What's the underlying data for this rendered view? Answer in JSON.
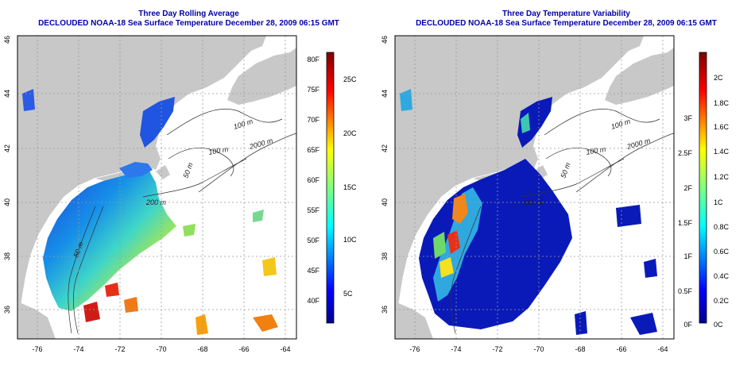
{
  "colors": {
    "land": "#c8c8c8",
    "title": "#0000a8",
    "contour": "#303030",
    "grid": "#9a9a9a"
  },
  "map_axes": {
    "lon_ticks": [
      "-76",
      "-74",
      "-72",
      "-70",
      "-68",
      "-66",
      "-64"
    ],
    "lat_ticks": [
      "36",
      "38",
      "40",
      "42",
      "44",
      "46"
    ],
    "depth_labels": [
      "100 m",
      "100 m",
      "2000 m",
      "200 m",
      "50 m",
      "50 m"
    ]
  },
  "left_panel": {
    "title_line1": "Three Day Rolling Average",
    "title_line2": "DECLOUDED NOAA-18 Sea Surface Temperature December 28, 2009 06:15 GMT",
    "colorbar": {
      "fahrenheit": [
        "80F",
        "75F",
        "70F",
        "65F",
        "60F",
        "55F",
        "50F",
        "45F",
        "40F"
      ],
      "celsius": [
        "25C",
        "20C",
        "15C",
        "10C",
        "5C"
      ]
    }
  },
  "right_panel": {
    "title_line1": "Three Day Temperature Variability",
    "title_line2": "DECLOUDED NOAA-18 Sea Surface Temperature December 28, 2009 06:15 GMT",
    "colorbar": {
      "fahrenheit": [
        "3F",
        "2.5F",
        "2F",
        "1.5F",
        "1F",
        "0.5F",
        "0F"
      ],
      "celsius": [
        "2C",
        "1.8C",
        "1.6C",
        "1.4C",
        "1.2C",
        "1C",
        "0.8C",
        "0.6C",
        "0.4C",
        "0.2C",
        "0C"
      ]
    }
  }
}
